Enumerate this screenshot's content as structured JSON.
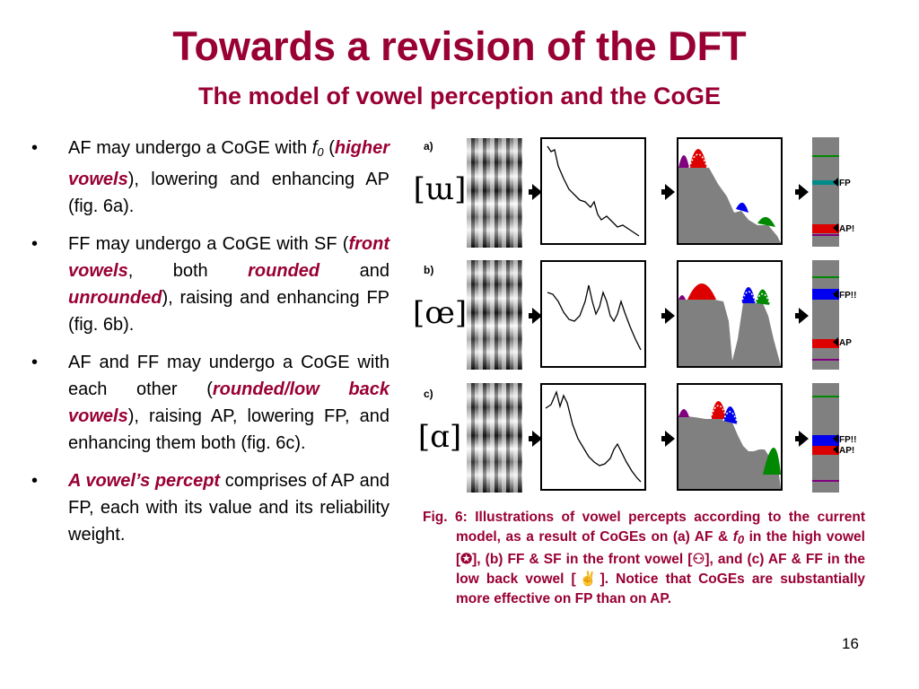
{
  "title": "Towards a revision of the DFT",
  "subtitle": "The model of vowel perception and the CoGE",
  "bullets": [
    {
      "bullet": "•",
      "line1": "AF may undergo a CoGE with",
      "f0": "f",
      "f0_sub": "0",
      "paren_open": " (",
      "emph": "higher vowels",
      "rest": "), lowering and enhancing AP (fig. 6a)."
    },
    {
      "bullet": "•",
      "pre": "FF may undergo a CoGE with SF (",
      "emph1": "front vowels",
      "mid1": ", both ",
      "emph2": "rounded",
      "mid2": " and ",
      "emph3": "unrounded",
      "rest": "), raising and enhancing FP (fig. 6b)."
    },
    {
      "bullet": "•",
      "pre": "AF and FF may undergo a CoGE with each other (",
      "emph": "rounded/low back vowels",
      "rest": "), raising AP, lowering FP, and enhancing them both (fig. 6c)."
    },
    {
      "bullet": "•",
      "emph": "A vowel’s percept",
      "rest": " comprises of AP and FP, each with its value and its reliability weight."
    }
  ],
  "figure": {
    "panels": [
      {
        "label": "a)",
        "ipa": "[ɯ]",
        "labels": [
          "FP",
          "AP!"
        ]
      },
      {
        "label": "b)",
        "ipa": "[œ]",
        "labels": [
          "FP!!",
          "AP"
        ]
      },
      {
        "label": "c)",
        "ipa": "[ɑ]",
        "labels": [
          "FP!!",
          "AP!"
        ]
      }
    ],
    "colors": {
      "accent": "#990033",
      "af": "#dd0000",
      "ff": "#0000ee",
      "sf": "#008800",
      "f0": "#800080",
      "fp_teal": "#008b8b",
      "spectrum_fill": "#808080"
    }
  },
  "caption": {
    "part1": "Fig. 6: Illustrations of vowel percepts according to the current model, as a result of CoGEs on (a) AF & ",
    "f0": "f",
    "f0_sub": "0",
    "part2": " in the high vowel [✪], (b) FF & SF in the front vowel [⚇], and (c) AF & FF in the low back vowel [✌]. Notice that CoGEs are substantially more effective on FP than on AP."
  },
  "page_number": "16"
}
